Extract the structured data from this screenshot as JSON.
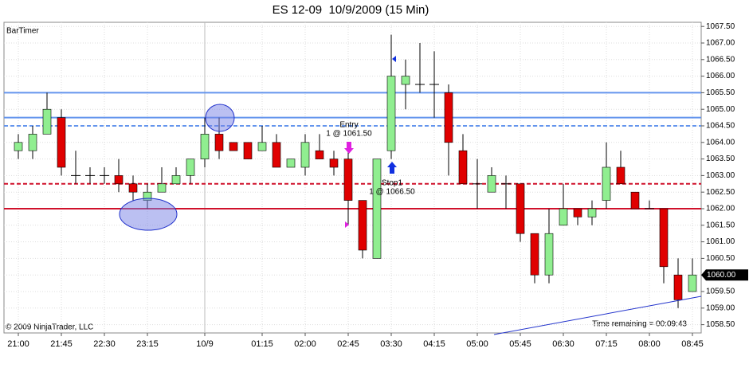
{
  "chart_data": {
    "type": "candlestick",
    "title": "ES 12-09  10/9/2009 (15 Min)",
    "indicator_label": "BarTimer",
    "copyright": "© 2009 NinjaTrader, LLC",
    "time_remaining": "Time remaining = 00:09:43",
    "annotations": {
      "entry": "Entry",
      "entry_detail": "1 @ 1061.50",
      "stop": "Stop1",
      "stop_detail": "1 @ 1066.50"
    },
    "categories": [
      "21:00",
      null,
      null,
      "21:45",
      null,
      null,
      "22:30",
      null,
      null,
      "23:15",
      null,
      null,
      null,
      "10/9",
      null,
      null,
      null,
      "01:15",
      null,
      null,
      "02:00",
      null,
      null,
      "02:45",
      null,
      null,
      "03:30",
      null,
      null,
      "04:15",
      null,
      null,
      "05:00",
      null,
      null,
      "05:45",
      null,
      null,
      "06:30",
      null,
      null,
      "07:15",
      null,
      null,
      "08:00",
      null,
      null,
      "08:45"
    ],
    "open": [
      1063.75,
      1063.75,
      1064.25,
      1064.75,
      1063,
      1063,
      1063,
      1063,
      1062.75,
      1062.25,
      1062.5,
      1062.75,
      1063,
      1063.5,
      1064.25,
      1064,
      1064,
      1063.75,
      1064,
      1063.25,
      1063.25,
      1063.75,
      1063.5,
      1063.5,
      1062.25,
      1060.5,
      1063.75,
      1065.75,
      1065.75,
      1065.75,
      1065.5,
      1063.75,
      1062.75,
      1062.5,
      1062.75,
      1062.75,
      1061.25,
      1060,
      1061.5,
      1062,
      1061.75,
      1062.25,
      1063.25,
      1062.5,
      1062,
      1062,
      1060,
      1059.5
    ],
    "high": [
      1064.25,
      1064.5,
      1065.5,
      1065,
      1063.75,
      1063.25,
      1063.25,
      1063.5,
      1063,
      1062.75,
      1063.25,
      1063.25,
      1063.5,
      1064.75,
      1064.75,
      1064,
      1064,
      1064.5,
      1064.25,
      1063.5,
      1064.25,
      1064.25,
      1063.75,
      1063.75,
      1062.25,
      1063.5,
      1067.25,
      1066.5,
      1067,
      1066.75,
      1065.75,
      1064.25,
      1063.5,
      1063.25,
      1063,
      1062.75,
      1061.25,
      1062,
      1062.75,
      1062,
      1062.25,
      1064,
      1063.75,
      1062.5,
      1062.25,
      1062,
      1060.5,
      1060.5
    ],
    "low": [
      1063.5,
      1063.5,
      1064.25,
      1063,
      1062.75,
      1062.75,
      1062.75,
      1062.5,
      1062.25,
      1062,
      1062.5,
      1062.75,
      1062.75,
      1063.25,
      1063.5,
      1063.75,
      1063.5,
      1063.75,
      1063.25,
      1063.25,
      1063,
      1063.5,
      1063,
      1061.5,
      1060.5,
      1060.5,
      1063.5,
      1065,
      1065.5,
      1064.75,
      1063,
      1062.75,
      1062,
      1062.5,
      1062,
      1061,
      1059.75,
      1059.75,
      1061.5,
      1061.5,
      1061.5,
      1062,
      1062.75,
      1062,
      1062,
      1059.75,
      1059,
      1059.5
    ],
    "close": [
      1064,
      1064.25,
      1065,
      1063.25,
      1063,
      1063,
      1063,
      1062.75,
      1062.5,
      1062.5,
      1062.75,
      1063,
      1063.5,
      1064.25,
      1063.75,
      1063.75,
      1063.5,
      1064,
      1063.25,
      1063.5,
      1064,
      1063.5,
      1063.25,
      1062.25,
      1060.75,
      1063.5,
      1066,
      1066,
      1065.75,
      1065.75,
      1064,
      1062.75,
      1062.75,
      1063,
      1062.75,
      1061.25,
      1060,
      1061.25,
      1062,
      1061.75,
      1062,
      1063.25,
      1062.75,
      1062,
      1062,
      1060.25,
      1059.25,
      1060
    ],
    "up_color": "#90ee90",
    "down_color": "#e00000",
    "hlines": [
      {
        "value": 1065.5,
        "color": "#6495ed",
        "dashed": false
      },
      {
        "value": 1064.75,
        "color": "#6495ed",
        "dashed": false
      },
      {
        "value": 1064.5,
        "color": "#6495ed",
        "dashed": true
      },
      {
        "value": 1062.75,
        "color": "#d0112b",
        "dashed": true
      },
      {
        "value": 1062,
        "color": "#d0112b",
        "dashed": false
      }
    ],
    "last_price": {
      "value": 1060,
      "label": "1060.00"
    },
    "ylim": [
      1058.25,
      1067.625
    ],
    "yticks": [
      {
        "value": 1058.5,
        "label": "1058.50"
      },
      {
        "value": 1059,
        "label": "1059.00"
      },
      {
        "value": 1059.5,
        "label": "1059.50"
      },
      {
        "value": 1060,
        "label": "1060.00"
      },
      {
        "value": 1060.5,
        "label": "1060.50"
      },
      {
        "value": 1061,
        "label": "1061.00"
      },
      {
        "value": 1061.5,
        "label": "1061.50"
      },
      {
        "value": 1062,
        "label": "1062.00"
      },
      {
        "value": 1062.5,
        "label": "1062.50"
      },
      {
        "value": 1063,
        "label": "1063.00"
      },
      {
        "value": 1063.5,
        "label": "1063.50"
      },
      {
        "value": 1064,
        "label": "1064.00"
      },
      {
        "value": 1064.5,
        "label": "1064.50"
      },
      {
        "value": 1065,
        "label": "1065.00"
      },
      {
        "value": 1065.5,
        "label": "1065.50"
      },
      {
        "value": 1066,
        "label": "1066.00"
      },
      {
        "value": 1066.5,
        "label": "1066.50"
      },
      {
        "value": 1067,
        "label": "1067.00"
      },
      {
        "value": 1067.5,
        "label": "1067.50"
      }
    ],
    "grid": true
  }
}
